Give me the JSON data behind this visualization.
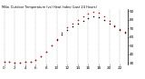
{
  "title": "Milw. Outdoor Temperature (vs) Heat Index (Last 24 Hours)",
  "bg_color": "#ffffff",
  "grid_color": "#888888",
  "temp_color": "#000000",
  "heat_color": "#dd0000",
  "ylim": [
    28,
    92
  ],
  "yticks": [
    30,
    40,
    50,
    60,
    70,
    80,
    90
  ],
  "ytick_labels": [
    "30",
    "40",
    "50",
    "60",
    "70",
    "80",
    "90"
  ],
  "hours": [
    0,
    1,
    2,
    3,
    4,
    5,
    6,
    7,
    8,
    9,
    10,
    11,
    12,
    13,
    14,
    15,
    16,
    17,
    18,
    19,
    20,
    21,
    22,
    23
  ],
  "temp_vals": [
    32,
    31,
    30,
    30,
    31,
    32,
    34,
    38,
    43,
    50,
    57,
    63,
    68,
    72,
    76,
    79,
    82,
    84,
    83,
    80,
    76,
    72,
    68,
    65
  ],
  "heat_vals": [
    32,
    31,
    30,
    30,
    31,
    32,
    34,
    38,
    43,
    50,
    58,
    65,
    71,
    76,
    80,
    84,
    87,
    89,
    88,
    84,
    79,
    74,
    69,
    66
  ],
  "xtick_step": 2,
  "dot_size": 1.2,
  "title_fontsize": 2.5,
  "tick_fontsize": 3.0
}
